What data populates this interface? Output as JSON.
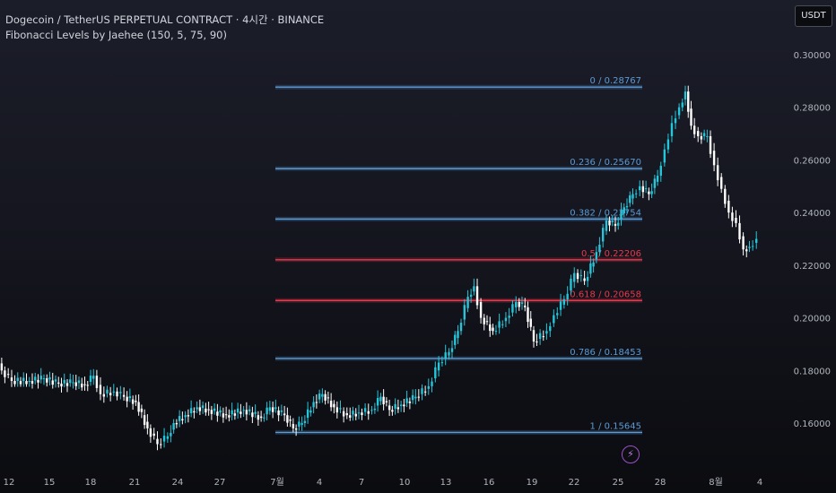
{
  "header": {
    "title": "Dogecoin / TetherUS PERPETUAL CONTRACT · 4시간 · BINANCE",
    "indicator": "Fibonacci Levels by Jaehee (150, 5, 75, 90)"
  },
  "currency_badge": "USDT",
  "colors": {
    "up": "#26c6da",
    "down": "#ffffff",
    "fib_blue": "#5b9bd5",
    "fib_red": "#e8394d",
    "axis_text": "#b2b5be"
  },
  "chart_data": {
    "type": "candlestick",
    "symbol": "DOGEUSDT.P",
    "timeframe": "4시간",
    "y_axis": {
      "min": 0.145,
      "max": 0.3035,
      "ticks": [
        "0.30000",
        "0.28000",
        "0.26000",
        "0.24000",
        "0.22000",
        "0.20000",
        "0.18000",
        "0.16000"
      ]
    },
    "x_axis": {
      "labels": [
        "12",
        "15",
        "18",
        "21",
        "24",
        "27",
        "7월",
        "4",
        "7",
        "10",
        "13",
        "16",
        "19",
        "22",
        "25",
        "28",
        "8월",
        "4"
      ]
    },
    "fib_levels": [
      {
        "label": "0 / 0.28767",
        "value": 0.28767,
        "color": "#5b9bd5"
      },
      {
        "label": "0.236 / 0.25670",
        "value": 0.2567,
        "color": "#5b9bd5"
      },
      {
        "label": "0.382 / 0.23754",
        "value": 0.23754,
        "color": "#5b9bd5"
      },
      {
        "label": "0.5 / 0.22206",
        "value": 0.22206,
        "color": "#e8394d"
      },
      {
        "label": "0.618 / 0.20658",
        "value": 0.20658,
        "color": "#e8394d"
      },
      {
        "label": "0.786 / 0.18453",
        "value": 0.18453,
        "color": "#5b9bd5"
      },
      {
        "label": "1 / 0.15645",
        "value": 0.15645,
        "color": "#5b9bd5"
      }
    ],
    "closes": [
      {
        "day": 10.1,
        "close": 0.204
      },
      {
        "day": 11.0,
        "close": 0.188
      },
      {
        "day": 11.6,
        "close": 0.18
      },
      {
        "day": 12.3,
        "close": 0.176
      },
      {
        "day": 13.5,
        "close": 0.176
      },
      {
        "day": 14.5,
        "close": 0.177
      },
      {
        "day": 15.5,
        "close": 0.175
      },
      {
        "day": 16.5,
        "close": 0.1755
      },
      {
        "day": 17.3,
        "close": 0.1745
      },
      {
        "day": 17.9,
        "close": 0.178
      },
      {
        "day": 18.4,
        "close": 0.171
      },
      {
        "day": 19.3,
        "close": 0.172
      },
      {
        "day": 20.0,
        "close": 0.17
      },
      {
        "day": 20.8,
        "close": 0.168
      },
      {
        "day": 21.6,
        "close": 0.158
      },
      {
        "day": 22.3,
        "close": 0.152
      },
      {
        "day": 23.0,
        "close": 0.155
      },
      {
        "day": 23.4,
        "close": 0.16
      },
      {
        "day": 24.2,
        "close": 0.163
      },
      {
        "day": 25.0,
        "close": 0.166
      },
      {
        "day": 25.8,
        "close": 0.165
      },
      {
        "day": 27.0,
        "close": 0.163
      },
      {
        "day": 28.2,
        "close": 0.165
      },
      {
        "day": 29.4,
        "close": 0.162
      },
      {
        "day": 30.0,
        "close": 0.166
      },
      {
        "day": 31.0,
        "close": 0.163
      },
      {
        "day": 31.6,
        "close": 0.158
      },
      {
        "day": 32.2,
        "close": 0.16
      },
      {
        "day": 33.0,
        "close": 0.168
      },
      {
        "day": 33.6,
        "close": 0.171
      },
      {
        "day": 34.4,
        "close": 0.166
      },
      {
        "day": 35.3,
        "close": 0.163
      },
      {
        "day": 36.1,
        "close": 0.164
      },
      {
        "day": 37.0,
        "close": 0.165
      },
      {
        "day": 37.6,
        "close": 0.17
      },
      {
        "day": 38.2,
        "close": 0.165
      },
      {
        "day": 39.0,
        "close": 0.167
      },
      {
        "day": 40.0,
        "close": 0.17
      },
      {
        "day": 40.9,
        "close": 0.174
      },
      {
        "day": 41.6,
        "close": 0.183
      },
      {
        "day": 42.3,
        "close": 0.187
      },
      {
        "day": 42.9,
        "close": 0.195
      },
      {
        "day": 43.6,
        "close": 0.208
      },
      {
        "day": 44.0,
        "close": 0.212
      },
      {
        "day": 44.5,
        "close": 0.2
      },
      {
        "day": 45.3,
        "close": 0.195
      },
      {
        "day": 46.2,
        "close": 0.2
      },
      {
        "day": 46.9,
        "close": 0.206
      },
      {
        "day": 47.5,
        "close": 0.204
      },
      {
        "day": 48.1,
        "close": 0.191
      },
      {
        "day": 49.0,
        "close": 0.195
      },
      {
        "day": 49.5,
        "close": 0.201
      },
      {
        "day": 50.2,
        "close": 0.207
      },
      {
        "day": 50.9,
        "close": 0.217
      },
      {
        "day": 51.6,
        "close": 0.214
      },
      {
        "day": 52.4,
        "close": 0.225
      },
      {
        "day": 53.1,
        "close": 0.237
      },
      {
        "day": 53.7,
        "close": 0.235
      },
      {
        "day": 54.3,
        "close": 0.242
      },
      {
        "day": 54.9,
        "close": 0.247
      },
      {
        "day": 55.4,
        "close": 0.25
      },
      {
        "day": 56.0,
        "close": 0.247
      },
      {
        "day": 56.6,
        "close": 0.254
      },
      {
        "day": 57.1,
        "close": 0.264
      },
      {
        "day": 57.6,
        "close": 0.274
      },
      {
        "day": 58.1,
        "close": 0.28
      },
      {
        "day": 58.5,
        "close": 0.286
      },
      {
        "day": 58.9,
        "close": 0.273
      },
      {
        "day": 59.4,
        "close": 0.269
      },
      {
        "day": 60.0,
        "close": 0.269
      },
      {
        "day": 60.5,
        "close": 0.258
      },
      {
        "day": 61.0,
        "close": 0.249
      },
      {
        "day": 61.5,
        "close": 0.24
      },
      {
        "day": 62.0,
        "close": 0.236
      },
      {
        "day": 62.5,
        "close": 0.226
      },
      {
        "day": 62.9,
        "close": 0.227
      },
      {
        "day": 63.4,
        "close": 0.23
      }
    ]
  }
}
